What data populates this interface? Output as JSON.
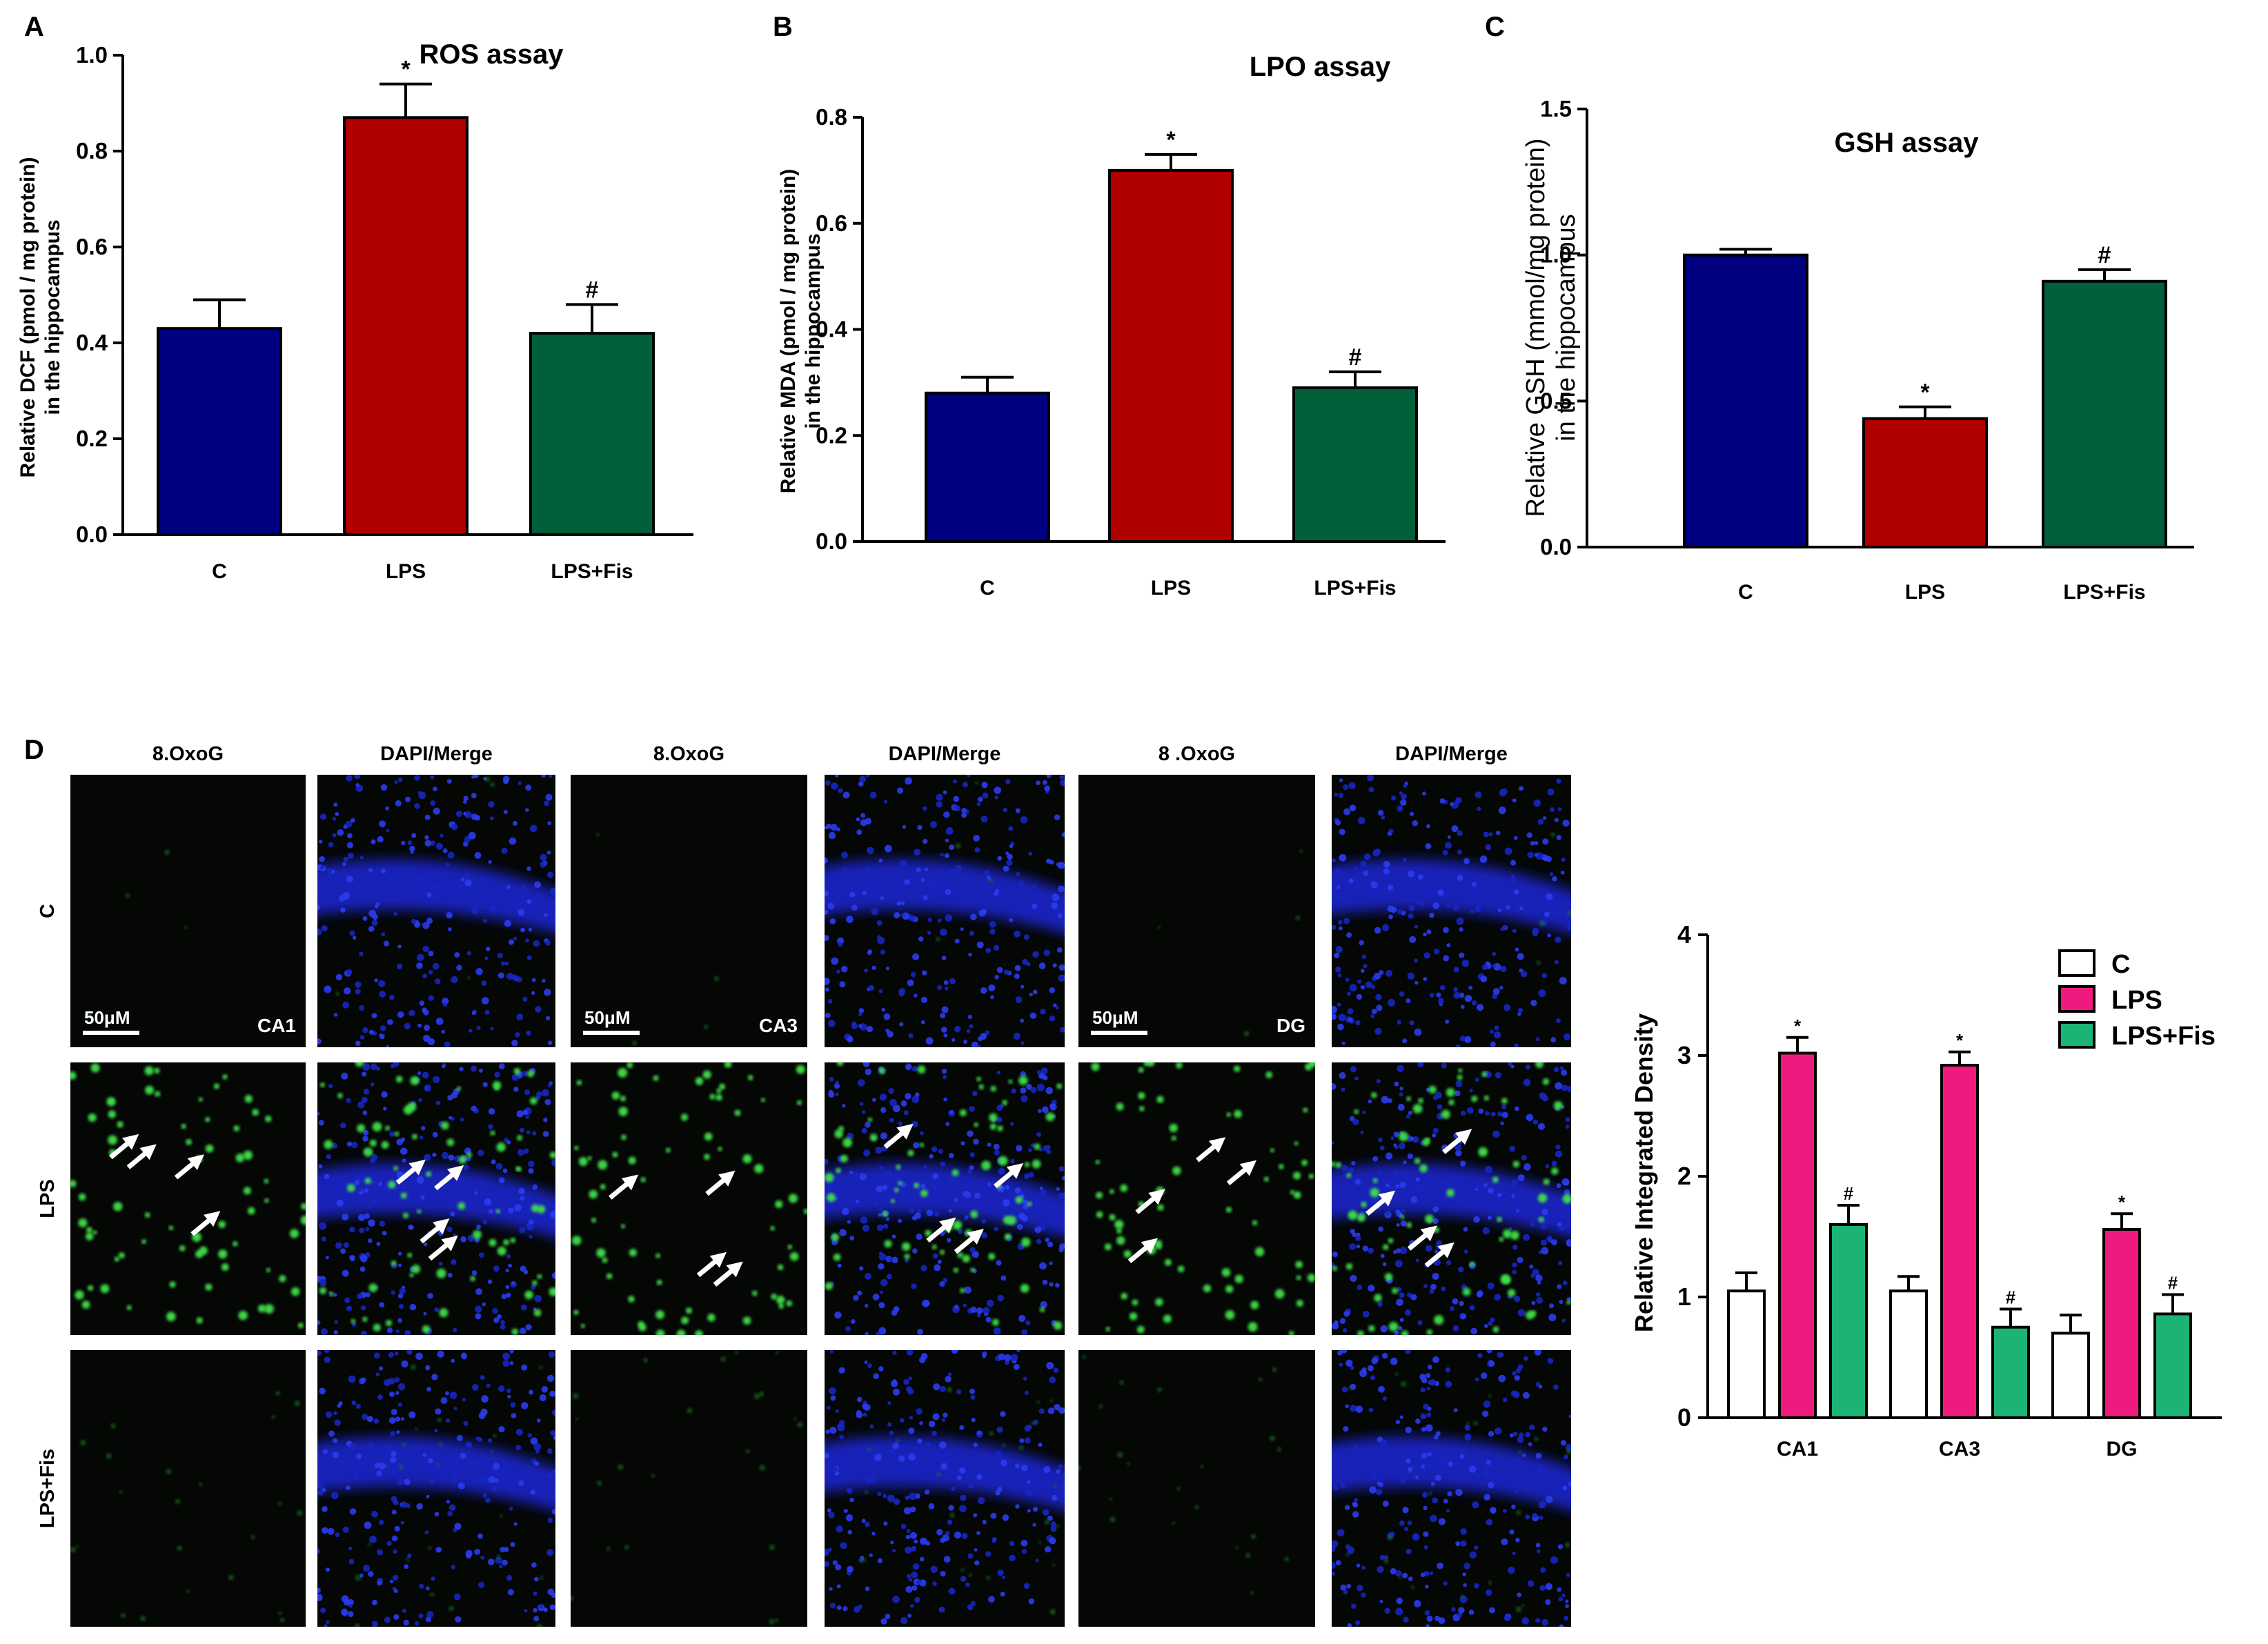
{
  "panels": {
    "A": "A",
    "B": "B",
    "C": "C",
    "D": "D"
  },
  "chart_data": [
    {
      "id": "A",
      "type": "bar",
      "title": "ROS assay",
      "ylabel": "Relative DCF (pmol / mg protein) in the hippocampus",
      "ylabel_lines": [
        "Relative DCF (pmol / mg protein)",
        "in the hippocampus"
      ],
      "categories": [
        "C",
        "LPS",
        "LPS+Fis"
      ],
      "values": [
        0.43,
        0.87,
        0.42
      ],
      "errors": [
        0.06,
        0.07,
        0.06
      ],
      "significance": [
        "",
        "*",
        "#"
      ],
      "ylim": [
        0,
        1.0
      ],
      "yticks": [
        "0.0",
        "0.2",
        "0.4",
        "0.6",
        "0.8",
        "1.0"
      ],
      "colors": [
        "#000080",
        "#b00000",
        "#006039"
      ],
      "grid": false
    },
    {
      "id": "B",
      "type": "bar",
      "title": "LPO assay",
      "ylabel": "Relative MDA (pmol / mg protein) in the hippocampus",
      "ylabel_lines": [
        "Relative MDA (pmol / mg protein)",
        "in the hippocampus"
      ],
      "categories": [
        "C",
        "LPS",
        "LPS+Fis"
      ],
      "values": [
        0.28,
        0.7,
        0.29
      ],
      "errors": [
        0.03,
        0.03,
        0.03
      ],
      "significance": [
        "",
        "*",
        "#"
      ],
      "ylim": [
        0,
        0.8
      ],
      "yticks": [
        "0.0",
        "0.2",
        "0.4",
        "0.6",
        "0.8"
      ],
      "colors": [
        "#000080",
        "#b00000",
        "#006039"
      ],
      "grid": false
    },
    {
      "id": "C",
      "type": "bar",
      "title": "GSH assay",
      "ylabel": "Relative GSH (mmol/mg protein) in the hippocampus",
      "ylabel_lines": [
        "Relative GSH (mmol/mg protein)",
        "in the hippocampus"
      ],
      "categories": [
        "C",
        "LPS",
        "LPS+Fis"
      ],
      "values": [
        1.0,
        0.44,
        0.91
      ],
      "errors": [
        0.02,
        0.04,
        0.04
      ],
      "significance": [
        "",
        "*",
        "#"
      ],
      "ylim": [
        0,
        1.5
      ],
      "yticks": [
        "0.0",
        "0.5",
        "1.0",
        "1.5"
      ],
      "colors": [
        "#000080",
        "#b00000",
        "#006039"
      ],
      "grid": false
    },
    {
      "id": "D-chart",
      "type": "bar",
      "ylabel": "Relative Integrated Density",
      "categories": [
        "CA1",
        "CA3",
        "DG"
      ],
      "ylim": [
        0,
        4
      ],
      "yticks": [
        "0",
        "1",
        "2",
        "3",
        "4"
      ],
      "legend": "top-right",
      "series": [
        {
          "name": "C",
          "values": [
            1.05,
            1.05,
            0.7
          ],
          "errors": [
            0.15,
            0.12,
            0.15
          ],
          "significance": [
            "",
            "",
            ""
          ],
          "color": "#ffffff"
        },
        {
          "name": "LPS",
          "values": [
            3.02,
            2.92,
            1.56
          ],
          "errors": [
            0.13,
            0.11,
            0.13
          ],
          "significance": [
            "*",
            "*",
            "*"
          ],
          "color": "#ee1a7d"
        },
        {
          "name": "LPS+Fis",
          "values": [
            1.6,
            0.75,
            0.86
          ],
          "errors": [
            0.16,
            0.15,
            0.16
          ],
          "significance": [
            "#",
            "#",
            "#"
          ],
          "color": "#1bb474"
        }
      ],
      "grid": false
    }
  ],
  "micrographs": {
    "column_labels": [
      "8.OxoG",
      "DAPI/Merge",
      "8.OxoG",
      "DAPI/Merge",
      "8 .OxoG",
      "DAPI/Merge"
    ],
    "row_labels": [
      "C",
      "LPS",
      "LPS+Fis"
    ],
    "scale_bar": "50μM",
    "regions": [
      "CA1",
      "CA3",
      "DG"
    ]
  }
}
